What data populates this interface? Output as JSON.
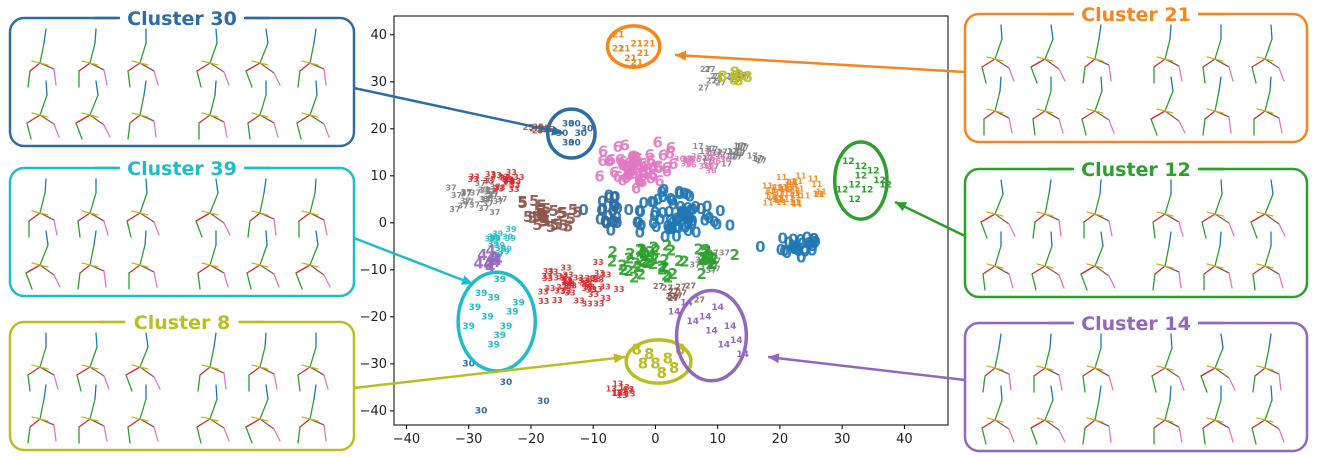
{
  "chart_data": {
    "type": "scatter",
    "xlim": [
      -42,
      47
    ],
    "ylim": [
      -43,
      44
    ],
    "xticks": [
      -40,
      -30,
      -20,
      -10,
      0,
      10,
      20,
      30,
      40
    ],
    "yticks": [
      -40,
      -30,
      -20,
      -10,
      0,
      10,
      20,
      30,
      40
    ],
    "grid": false,
    "marker": "cluster id number printed at each point",
    "colors": {
      "c30": "#2e6da4",
      "c21": "#f5861f",
      "c39": "#1fbccb",
      "c12": "#2ca02c",
      "c8": "#bcbd22",
      "c14": "#9467bd",
      "c3": "#d62728",
      "c5": "#8c564b",
      "c6": "#e377c2",
      "c17": "#7f7f7f",
      "c0": "#1f77b4"
    },
    "series": [
      {
        "name": "30",
        "color": "#2e6da4",
        "points": [
          [
            -14,
            21
          ],
          [
            -12,
            19
          ],
          [
            -13,
            17
          ],
          [
            -11,
            20
          ],
          [
            -15,
            19
          ],
          [
            -13,
            21
          ],
          [
            -14,
            17
          ],
          [
            -30,
            -30
          ],
          [
            -24,
            -34
          ],
          [
            -18,
            -38
          ],
          [
            -28,
            -40
          ]
        ]
      },
      {
        "name": "21",
        "color": "#f5861f",
        "points": [
          [
            -6,
            40
          ],
          [
            -3,
            38
          ],
          [
            -5,
            37
          ],
          [
            -2,
            36
          ],
          [
            -4,
            35
          ],
          [
            -1,
            38
          ],
          [
            -6,
            37
          ],
          [
            -3,
            34
          ]
        ]
      },
      {
        "name": "12",
        "color": "#2ca02c",
        "points": [
          [
            31,
            13
          ],
          [
            33,
            10
          ],
          [
            32,
            8
          ],
          [
            35,
            11
          ],
          [
            34,
            7
          ],
          [
            36,
            9
          ],
          [
            32,
            5
          ],
          [
            33,
            12
          ],
          [
            30,
            7
          ],
          [
            37,
            8
          ]
        ]
      },
      {
        "name": "39",
        "color": "#1fbccb",
        "points": [
          [
            -29,
            -18
          ],
          [
            -27,
            -20
          ],
          [
            -26,
            -16
          ],
          [
            -24,
            -22
          ],
          [
            -23,
            -19
          ],
          [
            -25,
            -24
          ],
          [
            -28,
            -15
          ],
          [
            -22,
            -17
          ],
          [
            -26,
            -26
          ],
          [
            -30,
            -22
          ],
          [
            -25,
            -12
          ]
        ]
      },
      {
        "name": "8",
        "color": "#bcbd22",
        "points": [
          [
            -3,
            -27
          ],
          [
            -1,
            -28
          ],
          [
            0,
            -30
          ],
          [
            2,
            -29
          ],
          [
            3,
            -31
          ],
          [
            4,
            -27
          ],
          [
            -2,
            -30
          ],
          [
            1,
            -32
          ]
        ]
      },
      {
        "name": "14",
        "color": "#9467bd",
        "points": [
          [
            3,
            -19
          ],
          [
            6,
            -21
          ],
          [
            9,
            -23
          ],
          [
            11,
            -26
          ],
          [
            14,
            -28
          ],
          [
            13,
            -25
          ],
          [
            8,
            -20
          ],
          [
            10,
            -18
          ],
          [
            5,
            -17
          ],
          [
            12,
            -22
          ]
        ]
      }
    ],
    "clusters": [
      {
        "label": "Cluster 30",
        "color": "#2e6da4",
        "ellipse": {
          "cx": -13.5,
          "cy": 19,
          "rx": 3.8,
          "ry": 5.2
        },
        "panel": "top-left"
      },
      {
        "label": "Cluster 39",
        "color": "#1fbccb",
        "ellipse": {
          "cx": -25.5,
          "cy": -21,
          "rx": 6.2,
          "ry": 10.5
        },
        "panel": "middle-left"
      },
      {
        "label": "Cluster 8",
        "color": "#bcbd22",
        "ellipse": {
          "cx": 0.5,
          "cy": -29.5,
          "rx": 5.2,
          "ry": 4.6
        },
        "panel": "bottom-left"
      },
      {
        "label": "Cluster 21",
        "color": "#f5861f",
        "ellipse": {
          "cx": -3.5,
          "cy": 37.5,
          "rx": 4.2,
          "ry": 4.4
        },
        "panel": "top-right"
      },
      {
        "label": "Cluster 12",
        "color": "#2ca02c",
        "ellipse": {
          "cx": 33,
          "cy": 9,
          "rx": 4.2,
          "ry": 8.2
        },
        "panel": "middle-right"
      },
      {
        "label": "Cluster 14",
        "color": "#9467bd",
        "ellipse": {
          "cx": 9,
          "cy": -24,
          "rx": 5.6,
          "ry": 9.6
        },
        "panel": "bottom-right"
      }
    ]
  }
}
